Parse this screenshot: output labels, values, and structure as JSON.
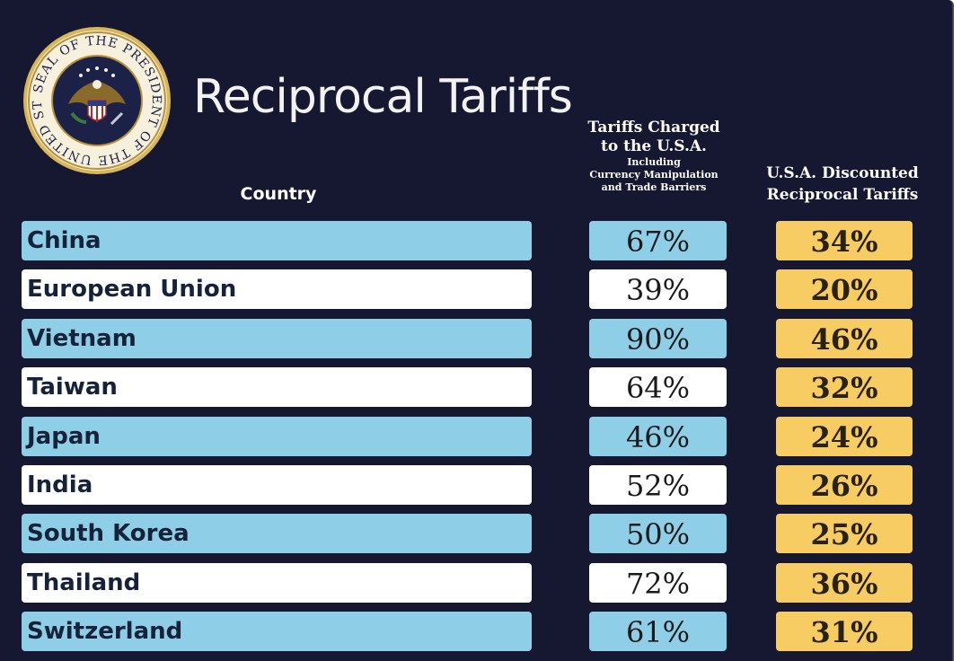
{
  "seal": {
    "ring_text": "SEAL OF THE PRESIDENT OF THE UNITED STATES"
  },
  "header": {
    "title": "Reciprocal Tariffs"
  },
  "columns": {
    "country": "Country",
    "charged_line1": "Tariffs Charged",
    "charged_line2": "to the U.S.A.",
    "charged_sub1": "Including",
    "charged_sub2": "Currency Manipulation",
    "charged_sub3": "and Trade Barriers",
    "discount_line1": "U.S.A. Discounted",
    "discount_line2": "Reciprocal Tariffs"
  },
  "colors": {
    "background": "#151830",
    "row_blue": "#8ecee6",
    "row_white": "#ffffff",
    "discount_gold": "#f7cd63"
  },
  "chart_data": {
    "type": "table",
    "title": "Reciprocal Tariffs",
    "columns": [
      "Country",
      "Tariffs Charged to the U.S.A. Including Currency Manipulation and Trade Barriers",
      "U.S.A. Discounted Reciprocal Tariffs"
    ],
    "rows": [
      {
        "country": "China",
        "charged": "67%",
        "discounted": "34%",
        "tone": "blue"
      },
      {
        "country": "European Union",
        "charged": "39%",
        "discounted": "20%",
        "tone": "white"
      },
      {
        "country": "Vietnam",
        "charged": "90%",
        "discounted": "46%",
        "tone": "blue"
      },
      {
        "country": "Taiwan",
        "charged": "64%",
        "discounted": "32%",
        "tone": "white"
      },
      {
        "country": "Japan",
        "charged": "46%",
        "discounted": "24%",
        "tone": "blue"
      },
      {
        "country": "India",
        "charged": "52%",
        "discounted": "26%",
        "tone": "white"
      },
      {
        "country": "South Korea",
        "charged": "50%",
        "discounted": "25%",
        "tone": "blue"
      },
      {
        "country": "Thailand",
        "charged": "72%",
        "discounted": "36%",
        "tone": "white"
      },
      {
        "country": "Switzerland",
        "charged": "61%",
        "discounted": "31%",
        "tone": "blue"
      }
    ]
  }
}
